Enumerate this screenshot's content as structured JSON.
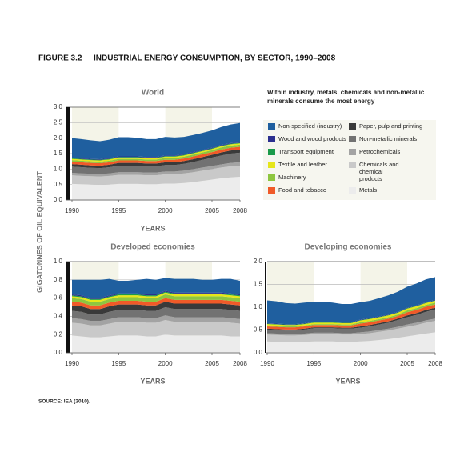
{
  "figure_number": "FIGURE 3.2",
  "figure_title": "INDUSTRIAL ENERGY CONSUMPTION, BY SECTOR, 1990–2008",
  "y_label": "GIGATONNES OF OIL EQUIVALENT",
  "note": "Within industry, metals, chemicals and non-metallic minerals consume the most energy",
  "source": "SOURCE: IEA (2010).",
  "chart_data": [
    {
      "type": "area",
      "title": "World",
      "x_label": "YEARS",
      "x": [
        1990,
        1991,
        1992,
        1993,
        1994,
        1995,
        1996,
        1997,
        1998,
        1999,
        2000,
        2001,
        2002,
        2003,
        2004,
        2005,
        2006,
        2007,
        2008
      ],
      "xlim": [
        1990,
        2008
      ],
      "xticks": [
        1990,
        1995,
        2000,
        2005,
        2008
      ],
      "ylim": [
        0,
        3
      ],
      "yticks": [
        {
          "value": 0,
          "label": "0.0"
        },
        {
          "value": 0.5,
          "label": "0.5"
        },
        {
          "value": 1,
          "label": "1.0"
        },
        {
          "value": 1.5,
          "label": "1.5"
        },
        {
          "value": 2,
          "label": "2.0"
        },
        {
          "value": 2.5,
          "label": "2.5"
        },
        {
          "value": 3,
          "label": "3.0"
        }
      ],
      "series": [
        {
          "name": "Metals",
          "color": "#ececec",
          "values": [
            0.52,
            0.51,
            0.5,
            0.49,
            0.5,
            0.52,
            0.52,
            0.52,
            0.51,
            0.51,
            0.53,
            0.53,
            0.55,
            0.58,
            0.62,
            0.66,
            0.7,
            0.73,
            0.75
          ]
        },
        {
          "name": "Chemicals and chemical products",
          "color": "#c9c9c9",
          "values": [
            0.28,
            0.27,
            0.27,
            0.27,
            0.28,
            0.29,
            0.29,
            0.29,
            0.29,
            0.29,
            0.3,
            0.3,
            0.31,
            0.32,
            0.33,
            0.34,
            0.35,
            0.36,
            0.36
          ]
        },
        {
          "name": "Petrochemicals",
          "color": "#a3a3a3",
          "values": [
            0.08,
            0.08,
            0.08,
            0.08,
            0.08,
            0.09,
            0.09,
            0.09,
            0.09,
            0.09,
            0.09,
            0.09,
            0.09,
            0.1,
            0.1,
            0.1,
            0.1,
            0.11,
            0.11
          ]
        },
        {
          "name": "Non-metallic minerals",
          "color": "#727272",
          "values": [
            0.2,
            0.2,
            0.19,
            0.19,
            0.2,
            0.21,
            0.21,
            0.21,
            0.2,
            0.2,
            0.21,
            0.21,
            0.22,
            0.23,
            0.25,
            0.27,
            0.29,
            0.3,
            0.31
          ]
        },
        {
          "name": "Paper, pulp and printing",
          "color": "#3a3a3a",
          "values": [
            0.08,
            0.08,
            0.08,
            0.08,
            0.08,
            0.09,
            0.09,
            0.09,
            0.09,
            0.09,
            0.09,
            0.09,
            0.09,
            0.09,
            0.09,
            0.09,
            0.1,
            0.1,
            0.1
          ]
        },
        {
          "name": "Food and tobacco",
          "color": "#f05a28",
          "values": [
            0.08,
            0.08,
            0.08,
            0.08,
            0.08,
            0.08,
            0.08,
            0.08,
            0.08,
            0.08,
            0.08,
            0.08,
            0.08,
            0.09,
            0.09,
            0.09,
            0.09,
            0.09,
            0.09
          ]
        },
        {
          "name": "Machinery",
          "color": "#8dc63f",
          "values": [
            0.05,
            0.05,
            0.05,
            0.05,
            0.05,
            0.05,
            0.05,
            0.05,
            0.05,
            0.05,
            0.06,
            0.06,
            0.06,
            0.06,
            0.06,
            0.06,
            0.07,
            0.07,
            0.07
          ]
        },
        {
          "name": "Textile and leather",
          "color": "#e6e619",
          "values": [
            0.04,
            0.04,
            0.04,
            0.04,
            0.04,
            0.04,
            0.04,
            0.04,
            0.04,
            0.04,
            0.04,
            0.04,
            0.04,
            0.04,
            0.04,
            0.04,
            0.04,
            0.04,
            0.04
          ]
        },
        {
          "name": "Transport equipment",
          "color": "#1a9a4a",
          "values": [
            0.02,
            0.02,
            0.02,
            0.02,
            0.02,
            0.02,
            0.02,
            0.02,
            0.02,
            0.02,
            0.02,
            0.02,
            0.02,
            0.02,
            0.02,
            0.02,
            0.02,
            0.02,
            0.02
          ]
        },
        {
          "name": "Wood and wood products",
          "color": "#2b2f8f",
          "values": [
            0.02,
            0.02,
            0.02,
            0.02,
            0.02,
            0.02,
            0.02,
            0.02,
            0.02,
            0.02,
            0.02,
            0.02,
            0.02,
            0.02,
            0.02,
            0.02,
            0.02,
            0.02,
            0.02
          ]
        },
        {
          "name": "Non-specified (industry)",
          "color": "#1f5f9f",
          "values": [
            0.63,
            0.62,
            0.6,
            0.58,
            0.6,
            0.62,
            0.62,
            0.6,
            0.58,
            0.58,
            0.6,
            0.58,
            0.56,
            0.55,
            0.55,
            0.56,
            0.58,
            0.6,
            0.62
          ]
        }
      ]
    },
    {
      "type": "area",
      "title": "Developed economies",
      "x_label": "YEARS",
      "x": [
        1990,
        1991,
        1992,
        1993,
        1994,
        1995,
        1996,
        1997,
        1998,
        1999,
        2000,
        2001,
        2002,
        2003,
        2004,
        2005,
        2006,
        2007,
        2008
      ],
      "xlim": [
        1990,
        2008
      ],
      "xticks": [
        1990,
        1995,
        2000,
        2005,
        2008
      ],
      "ylim": [
        0,
        1
      ],
      "yticks": [
        {
          "value": 0,
          "label": "0.0"
        },
        0.2,
        0.4,
        0.6,
        0.8,
        {
          "value": 1,
          "label": "1.0"
        }
      ],
      "series": [
        {
          "values": [
            0.19,
            0.18,
            0.17,
            0.17,
            0.18,
            0.19,
            0.19,
            0.19,
            0.18,
            0.18,
            0.2,
            0.19,
            0.19,
            0.19,
            0.19,
            0.19,
            0.19,
            0.18,
            0.18
          ]
        },
        {
          "values": [
            0.14,
            0.14,
            0.13,
            0.13,
            0.14,
            0.15,
            0.15,
            0.15,
            0.15,
            0.15,
            0.16,
            0.15,
            0.15,
            0.15,
            0.15,
            0.15,
            0.15,
            0.15,
            0.14
          ]
        },
        {
          "values": [
            0.05,
            0.05,
            0.05,
            0.05,
            0.05,
            0.05,
            0.05,
            0.05,
            0.05,
            0.05,
            0.05,
            0.05,
            0.05,
            0.05,
            0.05,
            0.05,
            0.05,
            0.05,
            0.05
          ]
        },
        {
          "values": [
            0.08,
            0.08,
            0.07,
            0.07,
            0.08,
            0.08,
            0.08,
            0.08,
            0.08,
            0.08,
            0.09,
            0.09,
            0.09,
            0.09,
            0.09,
            0.09,
            0.09,
            0.09,
            0.09
          ]
        },
        {
          "values": [
            0.06,
            0.06,
            0.06,
            0.06,
            0.06,
            0.06,
            0.06,
            0.06,
            0.06,
            0.06,
            0.06,
            0.06,
            0.06,
            0.06,
            0.06,
            0.06,
            0.06,
            0.06,
            0.06
          ]
        },
        {
          "values": [
            0.04,
            0.04,
            0.04,
            0.04,
            0.04,
            0.04,
            0.04,
            0.04,
            0.04,
            0.04,
            0.04,
            0.04,
            0.04,
            0.04,
            0.04,
            0.04,
            0.04,
            0.04,
            0.04
          ]
        },
        {
          "values": [
            0.04,
            0.04,
            0.04,
            0.04,
            0.04,
            0.04,
            0.04,
            0.04,
            0.04,
            0.04,
            0.04,
            0.04,
            0.04,
            0.04,
            0.04,
            0.04,
            0.04,
            0.04,
            0.04
          ]
        },
        {
          "values": [
            0.02,
            0.02,
            0.02,
            0.02,
            0.02,
            0.02,
            0.02,
            0.02,
            0.02,
            0.02,
            0.02,
            0.02,
            0.02,
            0.02,
            0.02,
            0.02,
            0.02,
            0.02,
            0.02
          ]
        },
        {
          "values": [
            0.01,
            0.01,
            0.01,
            0.01,
            0.01,
            0.01,
            0.01,
            0.01,
            0.01,
            0.01,
            0.01,
            0.01,
            0.01,
            0.01,
            0.01,
            0.01,
            0.01,
            0.01,
            0.01
          ]
        },
        {
          "values": [
            0.01,
            0.01,
            0.01,
            0.01,
            0.01,
            0.01,
            0.01,
            0.01,
            0.01,
            0.01,
            0.01,
            0.01,
            0.01,
            0.01,
            0.01,
            0.01,
            0.01,
            0.01,
            0.01
          ]
        },
        {
          "values": [
            0.16,
            0.17,
            0.2,
            0.2,
            0.18,
            0.14,
            0.14,
            0.15,
            0.17,
            0.16,
            0.14,
            0.15,
            0.15,
            0.15,
            0.14,
            0.14,
            0.15,
            0.16,
            0.15
          ]
        }
      ]
    },
    {
      "type": "area",
      "title": "Developing economies",
      "x_label": "YEARS",
      "x": [
        1990,
        1991,
        1992,
        1993,
        1994,
        1995,
        1996,
        1997,
        1998,
        1999,
        2000,
        2001,
        2002,
        2003,
        2004,
        2005,
        2006,
        2007,
        2008
      ],
      "xlim": [
        1990,
        2008
      ],
      "xticks": [
        1990,
        1995,
        2000,
        2005,
        2008
      ],
      "ylim": [
        0,
        2
      ],
      "yticks": [
        {
          "value": 0,
          "label": "0.0"
        },
        {
          "value": 0.5,
          "label": "0.5"
        },
        {
          "value": 1,
          "label": "1.0"
        },
        {
          "value": 1.5,
          "label": "1.5"
        },
        {
          "value": 2,
          "label": "2.0"
        }
      ],
      "series": [
        {
          "values": [
            0.25,
            0.24,
            0.23,
            0.23,
            0.24,
            0.25,
            0.25,
            0.25,
            0.24,
            0.24,
            0.25,
            0.26,
            0.28,
            0.3,
            0.33,
            0.36,
            0.39,
            0.42,
            0.45
          ]
        },
        {
          "values": [
            0.15,
            0.15,
            0.15,
            0.15,
            0.15,
            0.16,
            0.16,
            0.16,
            0.16,
            0.16,
            0.16,
            0.17,
            0.18,
            0.19,
            0.2,
            0.21,
            0.22,
            0.24,
            0.25
          ]
        },
        {
          "values": [
            0.03,
            0.03,
            0.03,
            0.03,
            0.03,
            0.03,
            0.03,
            0.03,
            0.03,
            0.03,
            0.04,
            0.04,
            0.04,
            0.04,
            0.04,
            0.05,
            0.05,
            0.05,
            0.05
          ]
        },
        {
          "values": [
            0.08,
            0.08,
            0.08,
            0.08,
            0.09,
            0.1,
            0.1,
            0.1,
            0.1,
            0.1,
            0.1,
            0.11,
            0.12,
            0.13,
            0.15,
            0.16,
            0.17,
            0.19,
            0.2
          ]
        },
        {
          "values": [
            0.02,
            0.02,
            0.02,
            0.02,
            0.02,
            0.02,
            0.02,
            0.02,
            0.02,
            0.02,
            0.03,
            0.03,
            0.03,
            0.03,
            0.03,
            0.04,
            0.04,
            0.04,
            0.04
          ]
        },
        {
          "values": [
            0.05,
            0.05,
            0.05,
            0.05,
            0.05,
            0.05,
            0.05,
            0.05,
            0.05,
            0.05,
            0.06,
            0.06,
            0.06,
            0.06,
            0.06,
            0.07,
            0.07,
            0.07,
            0.07
          ]
        },
        {
          "values": [
            0.02,
            0.02,
            0.02,
            0.02,
            0.02,
            0.02,
            0.02,
            0.02,
            0.02,
            0.02,
            0.03,
            0.03,
            0.03,
            0.03,
            0.03,
            0.04,
            0.04,
            0.04,
            0.04
          ]
        },
        {
          "values": [
            0.03,
            0.03,
            0.03,
            0.03,
            0.03,
            0.03,
            0.03,
            0.03,
            0.03,
            0.03,
            0.04,
            0.04,
            0.04,
            0.04,
            0.04,
            0.04,
            0.04,
            0.04,
            0.04
          ]
        },
        {
          "values": [
            0.01,
            0.01,
            0.01,
            0.01,
            0.01,
            0.01,
            0.01,
            0.01,
            0.01,
            0.01,
            0.01,
            0.01,
            0.01,
            0.01,
            0.01,
            0.01,
            0.01,
            0.01,
            0.01
          ]
        },
        {
          "values": [
            0.01,
            0.01,
            0.01,
            0.01,
            0.01,
            0.01,
            0.01,
            0.01,
            0.01,
            0.01,
            0.01,
            0.01,
            0.01,
            0.01,
            0.01,
            0.01,
            0.01,
            0.01,
            0.01
          ]
        },
        {
          "values": [
            0.5,
            0.49,
            0.46,
            0.45,
            0.45,
            0.44,
            0.44,
            0.42,
            0.4,
            0.4,
            0.38,
            0.38,
            0.4,
            0.42,
            0.44,
            0.46,
            0.48,
            0.5,
            0.5
          ]
        }
      ]
    }
  ]
}
